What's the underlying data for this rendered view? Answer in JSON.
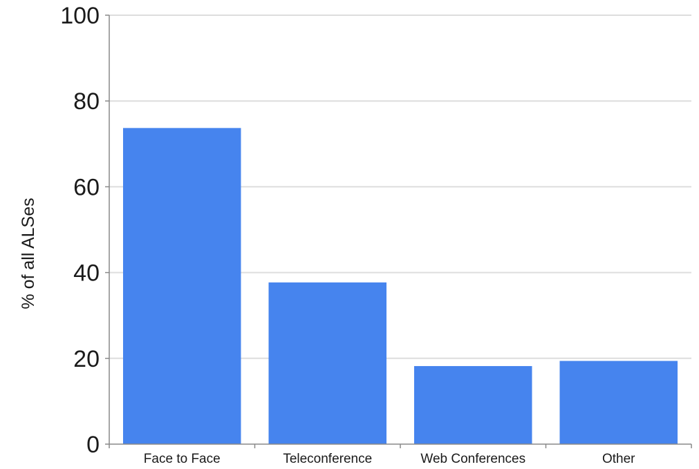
{
  "chart_data": {
    "type": "bar",
    "title": "",
    "xlabel": "",
    "ylabel": "% of all ALSes",
    "categories": [
      "Face to Face",
      "Teleconference",
      "Web Conferences",
      "Other"
    ],
    "values": [
      73.7,
      37.7,
      18.2,
      19.4
    ],
    "ylim": [
      0,
      100
    ],
    "yticks": [
      "0",
      "20",
      "40",
      "60",
      "80",
      "100"
    ],
    "grid": true,
    "legend": "none",
    "colors": {
      "bar": "#4684ee",
      "grid": "#dddddd",
      "axis": "#888888",
      "text": "#1a1a1a"
    }
  }
}
